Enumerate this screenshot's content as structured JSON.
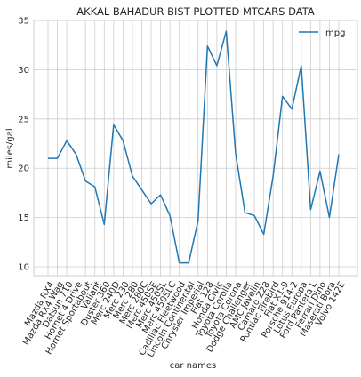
{
  "chart_data": {
    "type": "line",
    "title": "AKKAL BAHADUR BIST PLOTTED MTCARS DATA",
    "xlabel": "car names",
    "ylabel": "miles/gal",
    "ylim": [
      9.1,
      35.0
    ],
    "yticks": [
      10,
      15,
      20,
      25,
      30,
      35
    ],
    "grid": true,
    "legend_position": "top-right",
    "categories": [
      "Mazda RX4",
      "Mazda RX4 Wag",
      "Datsun 710",
      "Hornet 4 Drive",
      "Hornet Sportabout",
      "Valiant",
      "Duster 360",
      "Merc 240D",
      "Merc 230",
      "Merc 280",
      "Merc 280C",
      "Merc 450SE",
      "Merc 450SL",
      "Merc 450SLC",
      "Cadillac Fleetwood",
      "Lincoln Continental",
      "Chrysler Imperial",
      "Fiat 128",
      "Honda Civic",
      "Toyota Corolla",
      "Toyota Corona",
      "Dodge Challenger",
      "AMC Javelin",
      "Camaro Z28",
      "Pontiac Firebird",
      "Fiat X1-9",
      "Porsche 914-2",
      "Lotus Europa",
      "Ford Pantera L",
      "Ferrari Dino",
      "Maserati Bora",
      "Volvo 142E"
    ],
    "series": [
      {
        "name": "mpg",
        "color": "#1f77b4",
        "values": [
          21.0,
          21.0,
          22.8,
          21.4,
          18.7,
          18.1,
          14.3,
          24.4,
          22.8,
          19.2,
          17.8,
          16.4,
          17.3,
          15.2,
          10.4,
          10.4,
          14.7,
          32.4,
          30.4,
          33.9,
          21.5,
          15.5,
          15.2,
          13.3,
          19.2,
          27.3,
          26.0,
          30.4,
          15.8,
          19.7,
          15.0,
          21.4
        ]
      }
    ]
  }
}
